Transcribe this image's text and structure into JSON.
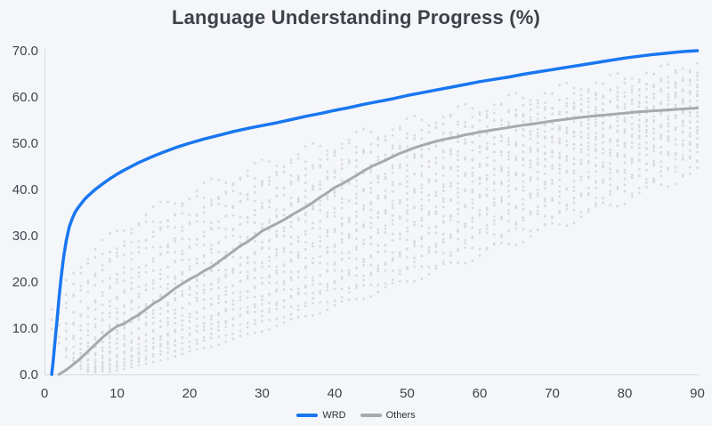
{
  "title": "Language Understanding Progress (%)",
  "legend": {
    "wrd_label": "WRD",
    "others_label": "Others"
  },
  "colors": {
    "background": "#f5f6fa",
    "title_text": "#3d4148",
    "tick_text": "#3f434a",
    "legend_text": "#2e3135",
    "axis_line": "#d9dbe0",
    "wrd_line": "#1877f0",
    "others_mean_line": "#a6a9ae",
    "background_dots": "#d5d7db"
  },
  "chart_data": {
    "type": "line",
    "title": "Language Understanding Progress (%)",
    "xlabel": "",
    "ylabel": "",
    "xlim": [
      0,
      90
    ],
    "ylim": [
      0,
      70
    ],
    "grid": false,
    "legend_position": "bottom-center",
    "x_tick_values": [
      0,
      10,
      20,
      30,
      40,
      50,
      60,
      70,
      80,
      90
    ],
    "x_tick_labels": [
      "0",
      "10",
      "20",
      "30",
      "40",
      "50",
      "60",
      "70",
      "80",
      "90"
    ],
    "y_tick_values": [
      0,
      10,
      20,
      30,
      40,
      50,
      60,
      70
    ],
    "y_tick_labels": [
      "0.0",
      "10.0",
      "20.0",
      "30.0",
      "40.0",
      "50.0",
      "60.0",
      "70.0"
    ],
    "series": [
      {
        "name": "WRD",
        "style": "solid",
        "color_key": "wrd_line",
        "stroke_width": 3.5,
        "points": [
          [
            1,
            0
          ],
          [
            1.2,
            3
          ],
          [
            1.5,
            8
          ],
          [
            1.8,
            13
          ],
          [
            2,
            16.5
          ],
          [
            2.3,
            21
          ],
          [
            2.6,
            25
          ],
          [
            3,
            29
          ],
          [
            3.4,
            31.8
          ],
          [
            3.8,
            33.6
          ],
          [
            4.2,
            35
          ],
          [
            4.6,
            36
          ],
          [
            5,
            36.8
          ],
          [
            5.5,
            37.8
          ],
          [
            6,
            38.6
          ],
          [
            6.5,
            39.3
          ],
          [
            7,
            40
          ],
          [
            8,
            41.2
          ],
          [
            9,
            42.3
          ],
          [
            10,
            43.3
          ],
          [
            11,
            44.2
          ],
          [
            12,
            45
          ],
          [
            13,
            45.8
          ],
          [
            14,
            46.5
          ],
          [
            15,
            47.2
          ],
          [
            16,
            47.8
          ],
          [
            17,
            48.4
          ],
          [
            18,
            49
          ],
          [
            19,
            49.5
          ],
          [
            20,
            50
          ],
          [
            22,
            50.9
          ],
          [
            24,
            51.7
          ],
          [
            26,
            52.5
          ],
          [
            28,
            53.2
          ],
          [
            30,
            53.8
          ],
          [
            32,
            54.4
          ],
          [
            34,
            55.1
          ],
          [
            36,
            55.8
          ],
          [
            38,
            56.4
          ],
          [
            40,
            57.1
          ],
          [
            42,
            57.7
          ],
          [
            44,
            58.4
          ],
          [
            46,
            59
          ],
          [
            48,
            59.6
          ],
          [
            50,
            60.3
          ],
          [
            52,
            60.9
          ],
          [
            54,
            61.5
          ],
          [
            56,
            62.1
          ],
          [
            58,
            62.7
          ],
          [
            60,
            63.3
          ],
          [
            62,
            63.8
          ],
          [
            64,
            64.3
          ],
          [
            66,
            64.9
          ],
          [
            68,
            65.4
          ],
          [
            70,
            65.9
          ],
          [
            72,
            66.4
          ],
          [
            74,
            66.9
          ],
          [
            76,
            67.4
          ],
          [
            78,
            67.9
          ],
          [
            80,
            68.4
          ],
          [
            82,
            68.8
          ],
          [
            84,
            69.2
          ],
          [
            86,
            69.5
          ],
          [
            88,
            69.8
          ],
          [
            90,
            70
          ]
        ]
      },
      {
        "name": "Others",
        "style": "solid",
        "color_key": "others_mean_line",
        "stroke_width": 3,
        "points": [
          [
            2,
            0
          ],
          [
            3,
            1
          ],
          [
            4,
            2.2
          ],
          [
            5,
            3.5
          ],
          [
            6,
            5
          ],
          [
            7,
            6.5
          ],
          [
            8,
            8
          ],
          [
            9,
            9.3
          ],
          [
            10,
            10.4
          ],
          [
            11,
            11
          ],
          [
            12,
            12
          ],
          [
            13,
            12.9
          ],
          [
            14,
            14.1
          ],
          [
            15,
            15.3
          ],
          [
            16,
            16.2
          ],
          [
            17,
            17.4
          ],
          [
            18,
            18.6
          ],
          [
            19,
            19.6
          ],
          [
            20,
            20.6
          ],
          [
            21,
            21.4
          ],
          [
            22,
            22.4
          ],
          [
            23,
            23.2
          ],
          [
            24,
            24.3
          ],
          [
            25,
            25.5
          ],
          [
            26,
            26.6
          ],
          [
            27,
            27.8
          ],
          [
            28,
            28.7
          ],
          [
            29,
            29.8
          ],
          [
            30,
            31
          ],
          [
            31,
            31.8
          ],
          [
            32,
            32.6
          ],
          [
            33,
            33.4
          ],
          [
            34,
            34.4
          ],
          [
            35,
            35.3
          ],
          [
            36,
            36.2
          ],
          [
            37,
            37.2
          ],
          [
            38,
            38.3
          ],
          [
            39,
            39.3
          ],
          [
            40,
            40.4
          ],
          [
            41,
            41.2
          ],
          [
            42,
            42.1
          ],
          [
            43,
            43
          ],
          [
            44,
            44
          ],
          [
            45,
            44.9
          ],
          [
            46,
            45.6
          ],
          [
            47,
            46.3
          ],
          [
            48,
            47.1
          ],
          [
            49,
            47.8
          ],
          [
            50,
            48.4
          ],
          [
            51,
            49
          ],
          [
            52,
            49.5
          ],
          [
            53,
            50
          ],
          [
            54,
            50.4
          ],
          [
            55,
            50.8
          ],
          [
            56,
            51.1
          ],
          [
            57,
            51.4
          ],
          [
            58,
            51.8
          ],
          [
            59,
            52.1
          ],
          [
            60,
            52.4
          ],
          [
            62,
            52.9
          ],
          [
            64,
            53.4
          ],
          [
            66,
            53.9
          ],
          [
            68,
            54.3
          ],
          [
            70,
            54.8
          ],
          [
            72,
            55.2
          ],
          [
            74,
            55.6
          ],
          [
            76,
            55.9
          ],
          [
            78,
            56.2
          ],
          [
            80,
            56.5
          ],
          [
            82,
            56.8
          ],
          [
            84,
            57
          ],
          [
            86,
            57.2
          ],
          [
            88,
            57.4
          ],
          [
            90,
            57.6
          ]
        ]
      }
    ],
    "background_series": {
      "description": "Other individual runs drawn as dotted curves, one dot per integer x; y = final * ((x - start)/(90 - start))^exponent",
      "style": "dotted",
      "color_key": "background_dots",
      "dot_radius": 1.4,
      "x_step": 1,
      "x_end": 90,
      "curves": [
        {
          "final": 66.0,
          "exponent": 0.35,
          "start": 0
        },
        {
          "final": 65.0,
          "exponent": 0.38,
          "start": 0
        },
        {
          "final": 64.5,
          "exponent": 0.4,
          "start": 1
        },
        {
          "final": 63.5,
          "exponent": 0.42,
          "start": 0
        },
        {
          "final": 63.0,
          "exponent": 0.45,
          "start": 1
        },
        {
          "final": 62.0,
          "exponent": 0.47,
          "start": 2
        },
        {
          "final": 61.5,
          "exponent": 0.5,
          "start": 1
        },
        {
          "final": 60.5,
          "exponent": 0.52,
          "start": 2
        },
        {
          "final": 60.0,
          "exponent": 0.55,
          "start": 2
        },
        {
          "final": 59.0,
          "exponent": 0.57,
          "start": 3
        },
        {
          "final": 58.5,
          "exponent": 0.6,
          "start": 2
        },
        {
          "final": 57.5,
          "exponent": 0.63,
          "start": 3
        },
        {
          "final": 57.0,
          "exponent": 0.66,
          "start": 3
        },
        {
          "final": 56.0,
          "exponent": 0.68,
          "start": 4
        },
        {
          "final": 55.5,
          "exponent": 0.71,
          "start": 3
        },
        {
          "final": 54.5,
          "exponent": 0.74,
          "start": 4
        },
        {
          "final": 54.0,
          "exponent": 0.77,
          "start": 4
        },
        {
          "final": 53.0,
          "exponent": 0.8,
          "start": 5
        },
        {
          "final": 52.0,
          "exponent": 0.84,
          "start": 4
        },
        {
          "final": 51.0,
          "exponent": 0.88,
          "start": 5
        },
        {
          "final": 50.0,
          "exponent": 0.92,
          "start": 5
        },
        {
          "final": 49.0,
          "exponent": 0.96,
          "start": 6
        },
        {
          "final": 48.0,
          "exponent": 1.0,
          "start": 5
        },
        {
          "final": 47.0,
          "exponent": 1.05,
          "start": 6
        },
        {
          "final": 45.5,
          "exponent": 1.12,
          "start": 6
        },
        {
          "final": 44.5,
          "exponent": 1.2,
          "start": 7
        }
      ]
    }
  }
}
